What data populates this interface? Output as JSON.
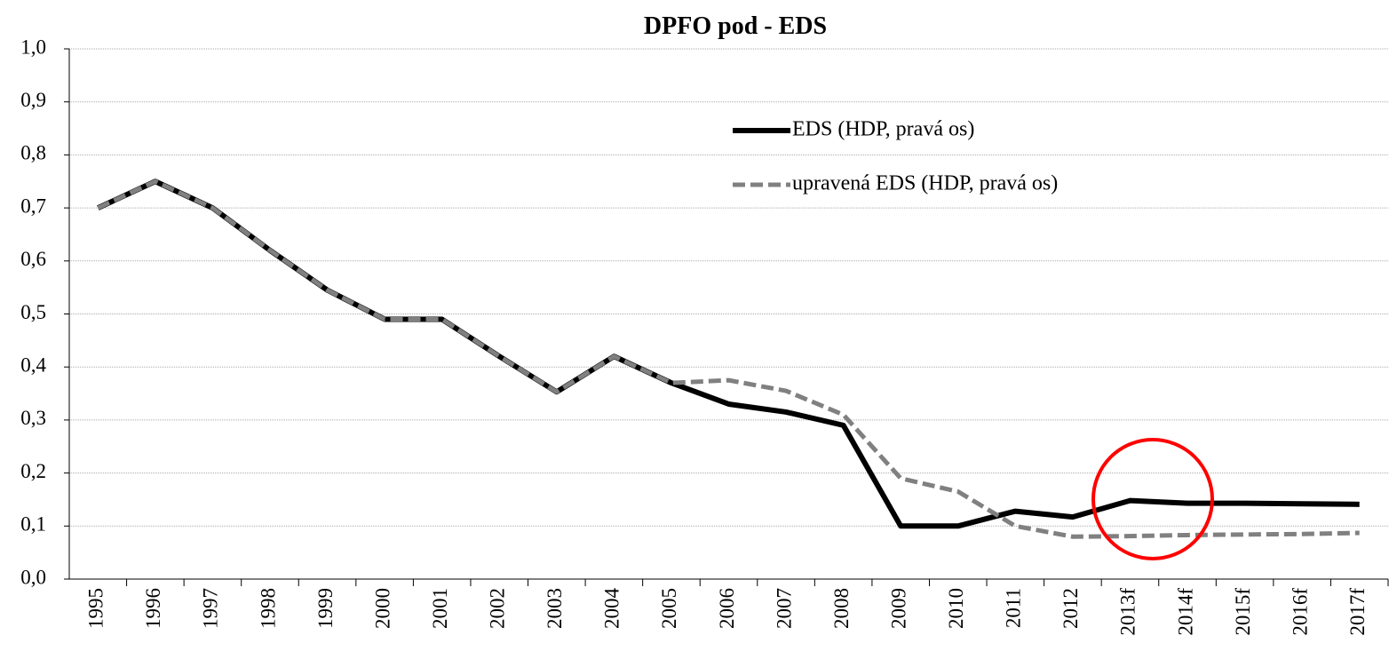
{
  "chart_data": {
    "type": "line",
    "title": "DPFO pod - EDS",
    "categories": [
      "1995",
      "1996",
      "1997",
      "1998",
      "1999",
      "2000",
      "2001",
      "2002",
      "2003",
      "2004",
      "2005",
      "2006",
      "2007",
      "2008",
      "2009",
      "2010",
      "2011",
      "2012",
      "2013f",
      "2014f",
      "2015f",
      "2016f",
      "2017f"
    ],
    "series": [
      {
        "name": "EDS (HDP, pravá os)",
        "color": "#000000",
        "dash": false,
        "values": [
          0.7,
          0.75,
          0.7,
          0.62,
          0.545,
          0.49,
          0.49,
          0.42,
          0.353,
          0.42,
          0.37,
          0.33,
          0.315,
          0.29,
          0.1,
          0.1,
          0.128,
          0.117,
          0.148,
          0.143,
          0.143,
          0.142,
          0.141
        ]
      },
      {
        "name": "upravená EDS (HDP, pravá os)",
        "color": "#808080",
        "dash": true,
        "values": [
          0.7,
          0.75,
          0.7,
          0.62,
          0.545,
          0.49,
          0.49,
          0.42,
          0.353,
          0.42,
          0.37,
          0.375,
          0.355,
          0.31,
          0.19,
          0.165,
          0.1,
          0.08,
          0.081,
          0.083,
          0.084,
          0.085,
          0.087
        ]
      }
    ],
    "ylim": [
      0,
      1
    ],
    "yticks": [
      {
        "value": 0,
        "label": "0,0"
      },
      {
        "value": 0.1,
        "label": "0,1"
      },
      {
        "value": 0.2,
        "label": "0,2"
      },
      {
        "value": 0.3,
        "label": "0,3"
      },
      {
        "value": 0.4,
        "label": "0,4"
      },
      {
        "value": 0.5,
        "label": "0,5"
      },
      {
        "value": 0.6,
        "label": "0,6"
      },
      {
        "value": 0.7,
        "label": "0,7"
      },
      {
        "value": 0.8,
        "label": "0,8"
      },
      {
        "value": 0.9,
        "label": "0,9"
      },
      {
        "value": 1,
        "label": "1,0"
      }
    ],
    "grid": true,
    "legend": "top-center"
  }
}
